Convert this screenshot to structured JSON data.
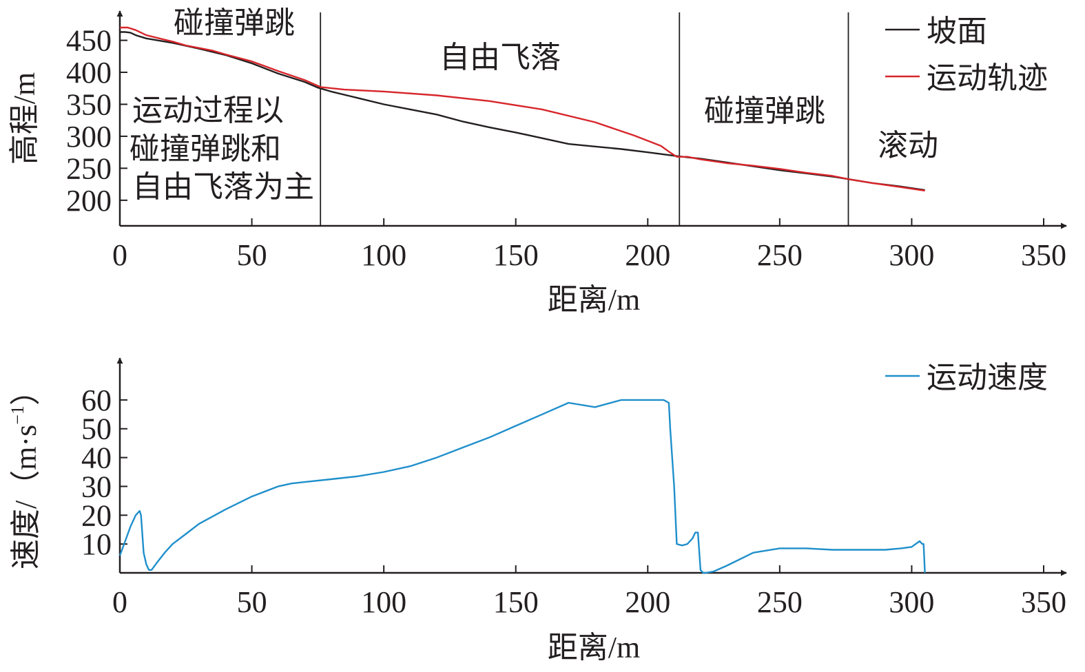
{
  "colors": {
    "axis": "#231f20",
    "slope": "#231f20",
    "trajectory": "#d7262b",
    "speed": "#1f8fcb"
  },
  "chart_data": [
    {
      "type": "line",
      "xlabel": "距离/m",
      "ylabel": "高程/m",
      "xlim": [
        0,
        350
      ],
      "ylim": [
        160,
        470
      ],
      "xticks": [
        "0",
        "50",
        "100",
        "150",
        "200",
        "250",
        "300",
        "350"
      ],
      "yticks": [
        "200",
        "250",
        "300",
        "350",
        "400",
        "450"
      ],
      "xtick_values": [
        0,
        50,
        100,
        150,
        200,
        250,
        300,
        350
      ],
      "ytick_values": [
        200,
        250,
        300,
        350,
        400,
        450
      ],
      "grid": false,
      "legend_position": "top-right",
      "series": [
        {
          "name": "坡面",
          "color": "#231f20",
          "x": [
            0,
            2,
            4,
            6,
            10,
            20,
            30,
            40,
            50,
            60,
            70,
            75,
            80,
            90,
            100,
            110,
            120,
            130,
            140,
            150,
            160,
            170,
            180,
            190,
            200,
            211,
            220,
            230,
            240,
            250,
            260,
            270,
            276,
            285,
            295,
            305
          ],
          "y": [
            463,
            463,
            462,
            458,
            453,
            446,
            437,
            427,
            414,
            398,
            385,
            376,
            370,
            360,
            350,
            342,
            334,
            323,
            314,
            306,
            297,
            288,
            284,
            280,
            275,
            269,
            265,
            259,
            253,
            247,
            242,
            237,
            233,
            227,
            222,
            216
          ]
        },
        {
          "name": "运动轨迹",
          "color": "#d7262b",
          "x": [
            0,
            3,
            6,
            10,
            15,
            20,
            25,
            30,
            35,
            40,
            50,
            60,
            70,
            76,
            85,
            100,
            120,
            140,
            160,
            180,
            195,
            205,
            208,
            211,
            215,
            220,
            230,
            240,
            250,
            260,
            270,
            276,
            285,
            295,
            305
          ],
          "y": [
            470,
            470,
            466,
            458,
            453,
            448,
            442,
            438,
            434,
            428,
            417,
            402,
            388,
            377,
            373,
            370,
            364,
            355,
            342,
            322,
            301,
            285,
            276,
            268,
            268,
            264,
            258,
            254,
            249,
            243,
            238,
            233,
            227,
            221,
            215
          ]
        }
      ],
      "regions": [
        {
          "label": "碰撞弹跳",
          "x_range": [
            0,
            76
          ]
        },
        {
          "label": "自由飞落",
          "x_range": [
            76,
            212
          ]
        },
        {
          "label": "碰撞弹跳",
          "x_range": [
            212,
            276
          ]
        },
        {
          "label": "滚动",
          "x_range": [
            276,
            350
          ]
        }
      ],
      "boundaries_x": [
        76,
        212,
        276
      ],
      "annotation_lines": [
        "运动过程以",
        "碰撞弹跳和",
        "自由飞落为主"
      ]
    },
    {
      "type": "line",
      "xlabel": "距离/m",
      "ylabel_prefix": "速度/（m·s",
      "ylabel_sup": "−1",
      "ylabel_suffix": "）",
      "xlim": [
        0,
        350
      ],
      "ylim": [
        0,
        70
      ],
      "xticks": [
        "0",
        "50",
        "100",
        "150",
        "200",
        "250",
        "300",
        "350"
      ],
      "yticks": [
        "10",
        "20",
        "30",
        "40",
        "50",
        "60"
      ],
      "xtick_values": [
        0,
        50,
        100,
        150,
        200,
        250,
        300,
        350
      ],
      "ytick_values": [
        10,
        20,
        30,
        40,
        50,
        60
      ],
      "grid": false,
      "legend_position": "top-right",
      "series": [
        {
          "name": "运动速度",
          "color": "#1f8fcb",
          "x": [
            0,
            2,
            4,
            6,
            7.5,
            8,
            9,
            10,
            11,
            12,
            14,
            17,
            20,
            25,
            30,
            40,
            50,
            60,
            65,
            70,
            80,
            90,
            100,
            110,
            120,
            130,
            140,
            150,
            160,
            170,
            180,
            190,
            200,
            206,
            208,
            208.5,
            210,
            211,
            213,
            215,
            217,
            218,
            219,
            220,
            221,
            222,
            225,
            230,
            240,
            250,
            255,
            260,
            270,
            280,
            290,
            296,
            300,
            303,
            304,
            304.5,
            305
          ],
          "y": [
            6,
            11,
            16,
            20,
            21.5,
            20,
            7,
            3,
            1,
            1,
            3.5,
            7,
            10,
            13.5,
            17,
            22,
            26.5,
            30,
            31,
            31.5,
            32.5,
            33.5,
            35,
            37,
            40,
            43.5,
            47,
            51,
            55,
            59,
            57.5,
            60,
            60,
            60,
            59,
            50,
            30,
            10,
            9.5,
            10,
            12,
            14,
            14,
            1,
            0,
            0,
            0.5,
            2.5,
            7,
            8.5,
            8.5,
            8.5,
            8,
            8,
            8,
            8.5,
            9,
            11,
            10,
            10,
            0
          ]
        }
      ]
    }
  ]
}
